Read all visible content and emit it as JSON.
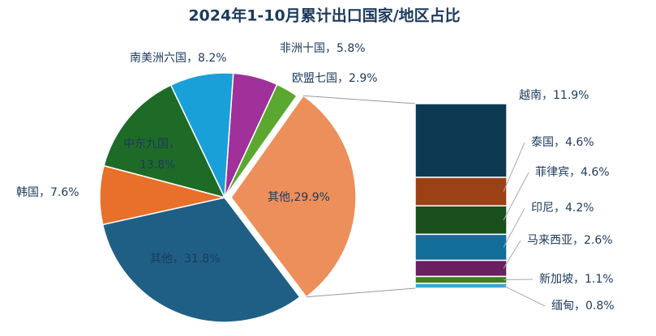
{
  "chart_data": {
    "type": "pie-of-bar",
    "title": "2024年1-10月累计出口国家/地区占比",
    "pie": {
      "labels": [
        [
          "非洲十国，5.8%"
        ],
        [
          "欧盟七国，2.9%"
        ],
        [
          "其他,29.9%"
        ],
        [
          "其他，31.8%"
        ],
        [
          "韩国，7.6%"
        ],
        [
          "中东九国，",
          "13.8%"
        ],
        [
          "南美洲六国，8.2%"
        ]
      ],
      "values": [
        5.8,
        2.9,
        29.9,
        31.8,
        7.6,
        13.8,
        8.2
      ],
      "colors": [
        "#a0309a",
        "#5aa830",
        "#ed8f5a",
        "#1f5f85",
        "#e8702a",
        "#1e6b28",
        "#1aa0d8"
      ]
    },
    "bar": {
      "labels": [
        "越南，11.9%",
        "泰国，4.6%",
        "菲律宾，4.6%",
        "印尼，4.2%",
        "马来西亚，2.6%",
        "新加坡，1.1%",
        "缅甸，0.8%"
      ],
      "values": [
        11.9,
        4.6,
        4.6,
        4.2,
        2.6,
        1.1,
        0.8
      ],
      "colors": [
        "#0d3a52",
        "#9c4116",
        "#1a4f1e",
        "#136d99",
        "#6a1f60",
        "#3f7d1f",
        "#3aa6d8"
      ]
    }
  }
}
